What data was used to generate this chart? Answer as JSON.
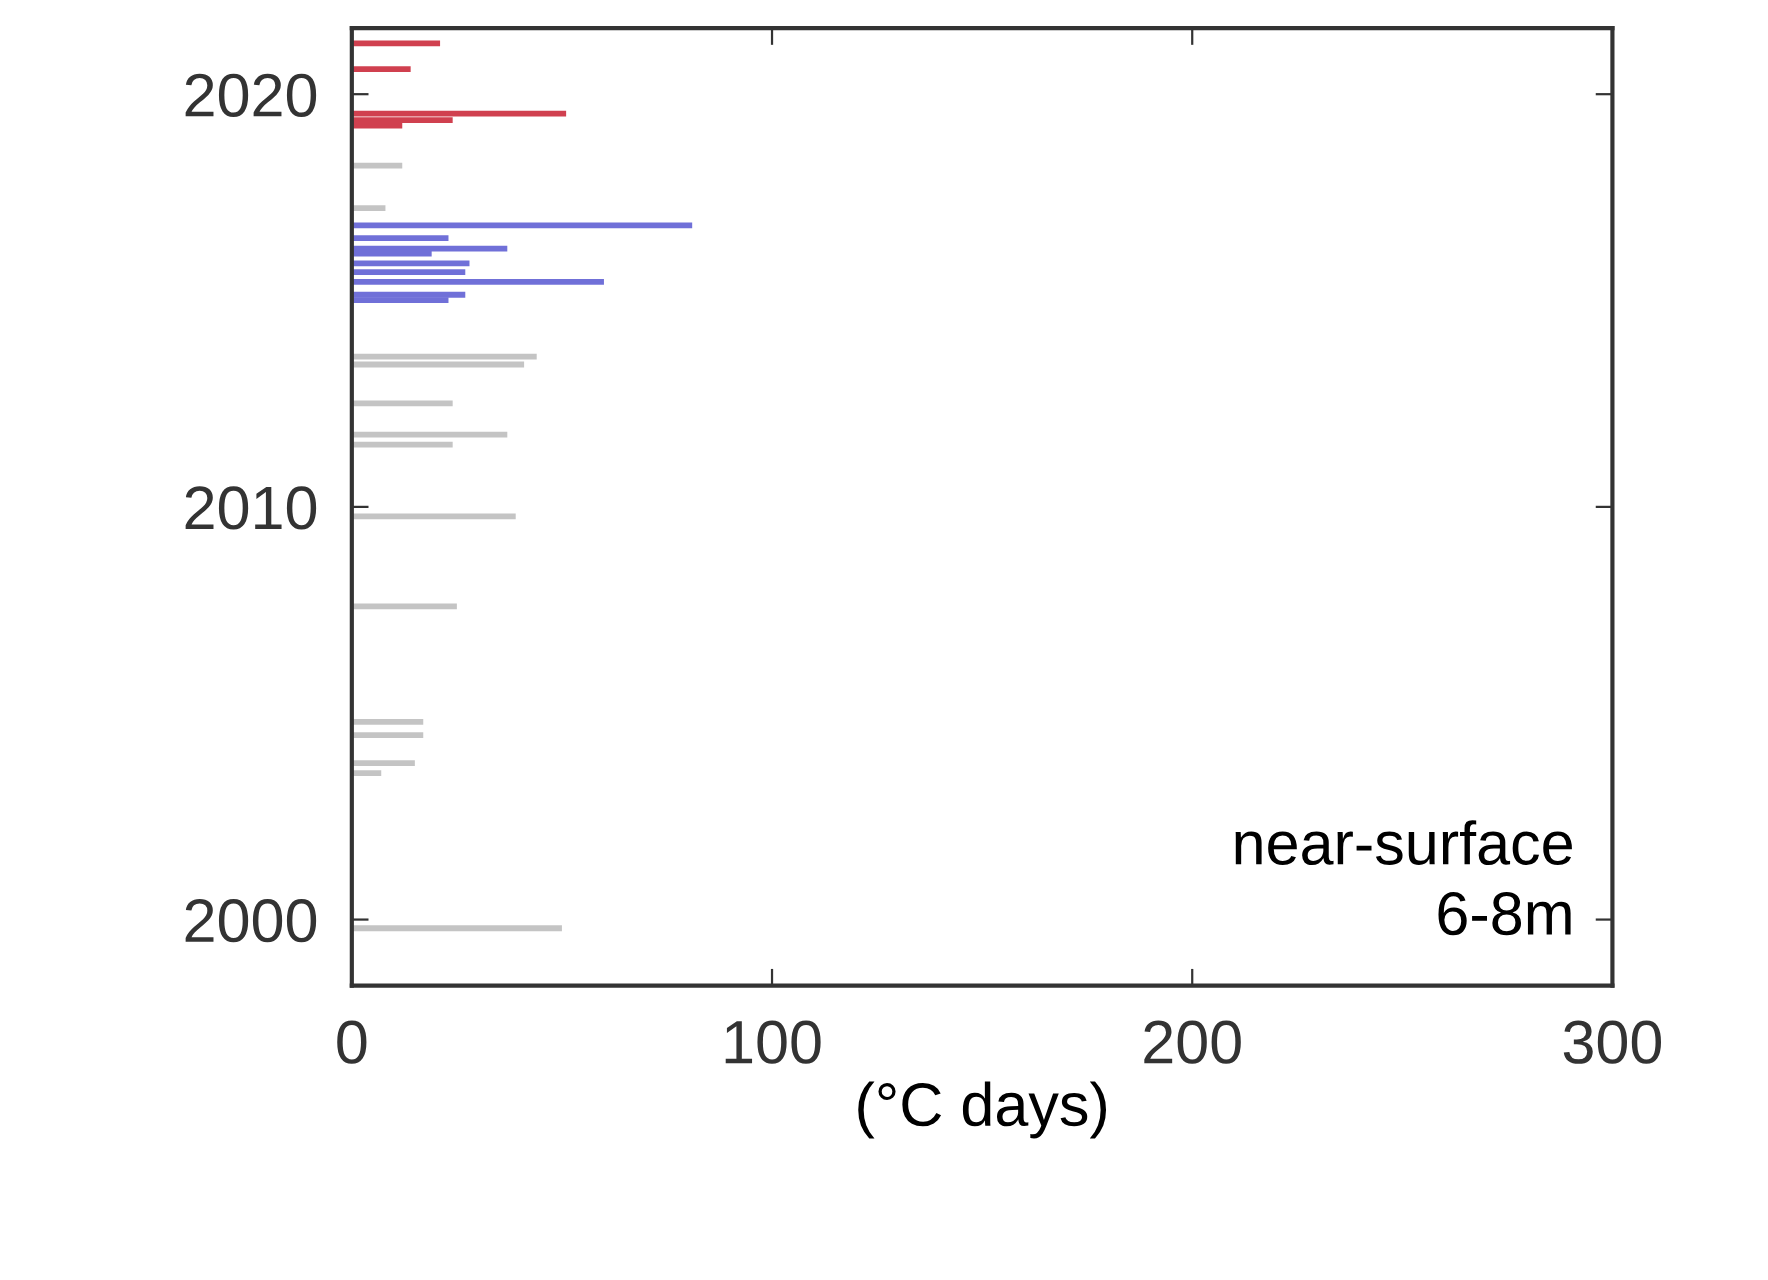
{
  "chart_data": {
    "type": "bar",
    "orientation": "horizontal",
    "xlabel": "(°C days)",
    "annotations": [
      "near-surface\n6-8m"
    ],
    "series": [
      {
        "color": "#c4c4c4",
        "x": [
          2018.27,
          2017.24,
          2013.64,
          2013.45,
          2012.51,
          2011.75,
          2011.51,
          2009.77,
          2007.59,
          2004.79,
          2004.47,
          2003.79,
          2003.55,
          1999.79
        ],
        "values": [
          12,
          8,
          44,
          41,
          24,
          37,
          24,
          39,
          25,
          17,
          17,
          15,
          7,
          50
        ]
      },
      {
        "color": "#7070d8",
        "x": [
          2016.82,
          2016.51,
          2016.26,
          2016.14,
          2015.9,
          2015.69,
          2015.45,
          2015.14,
          2015.01
        ],
        "values": [
          81,
          23,
          37,
          19,
          28,
          27,
          60,
          27,
          23
        ]
      },
      {
        "color": "#d0404f",
        "x": [
          2021.23,
          2020.61,
          2019.53,
          2019.37,
          2019.24
        ],
        "values": [
          21,
          14,
          51,
          24,
          12
        ]
      }
    ],
    "xlim": [
      0,
      300
    ],
    "xticks": [
      0,
      100,
      200,
      300
    ],
    "ylim": [
      1998.4,
      2021.6
    ],
    "yticks": [
      2000,
      2010,
      2020
    ],
    "grid": false,
    "legend": false
  }
}
